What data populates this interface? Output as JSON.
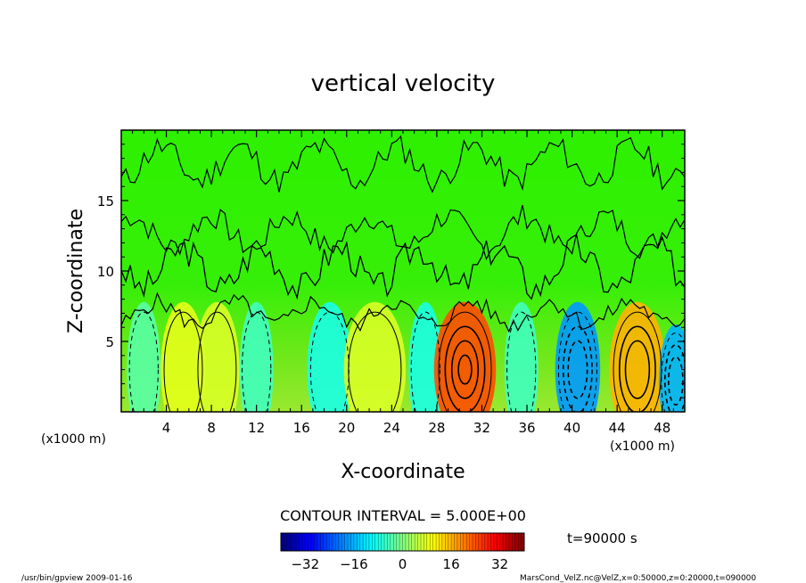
{
  "chart_data": {
    "type": "heatmap",
    "title": "vertical velocity",
    "xlabel": "X-coordinate",
    "ylabel": "Z-coordinate",
    "x_unit_label": "(x1000 m)",
    "y_unit_label": "(x1000 m)",
    "xlim": [
      0,
      50
    ],
    "ylim": [
      0,
      20
    ],
    "x_ticks": [
      4,
      8,
      12,
      16,
      20,
      24,
      28,
      32,
      36,
      40,
      44,
      48
    ],
    "y_ticks": [
      5,
      10,
      15
    ],
    "contour_interval_text": "CONTOUR INTERVAL = 5.000E+00",
    "time_text": "t=90000 s",
    "colorbar": {
      "min": -40,
      "max": 40,
      "ticks": [
        -32,
        -16,
        0,
        16,
        32
      ]
    },
    "cells": [
      {
        "x": 2,
        "z": 3,
        "w": 3.0,
        "level": -3
      },
      {
        "x": 5.5,
        "z": 3,
        "w": 4.0,
        "level": 8
      },
      {
        "x": 8.5,
        "z": 3,
        "w": 4.0,
        "level": 7
      },
      {
        "x": 12,
        "z": 3,
        "w": 3.0,
        "level": -5
      },
      {
        "x": 18.5,
        "z": 3,
        "w": 4.0,
        "level": -8
      },
      {
        "x": 22.5,
        "z": 3,
        "w": 5.5,
        "level": 7
      },
      {
        "x": 27,
        "z": 3,
        "w": 3.0,
        "level": -8
      },
      {
        "x": 30.5,
        "z": 3,
        "w": 5.5,
        "level": 24
      },
      {
        "x": 35.5,
        "z": 3,
        "w": 3.0,
        "level": -5
      },
      {
        "x": 40.5,
        "z": 3,
        "w": 4.0,
        "level": -18
      },
      {
        "x": 45.8,
        "z": 3,
        "w": 5.0,
        "level": 16
      },
      {
        "x": 49.2,
        "z": 2.2,
        "w": 3.0,
        "level": -16
      }
    ]
  },
  "footer": {
    "left": "/usr/bin/gpview   2009-01-16",
    "right": "MarsCond_VelZ.nc@VelZ,x=0:50000,z=0:20000,t=090000"
  }
}
